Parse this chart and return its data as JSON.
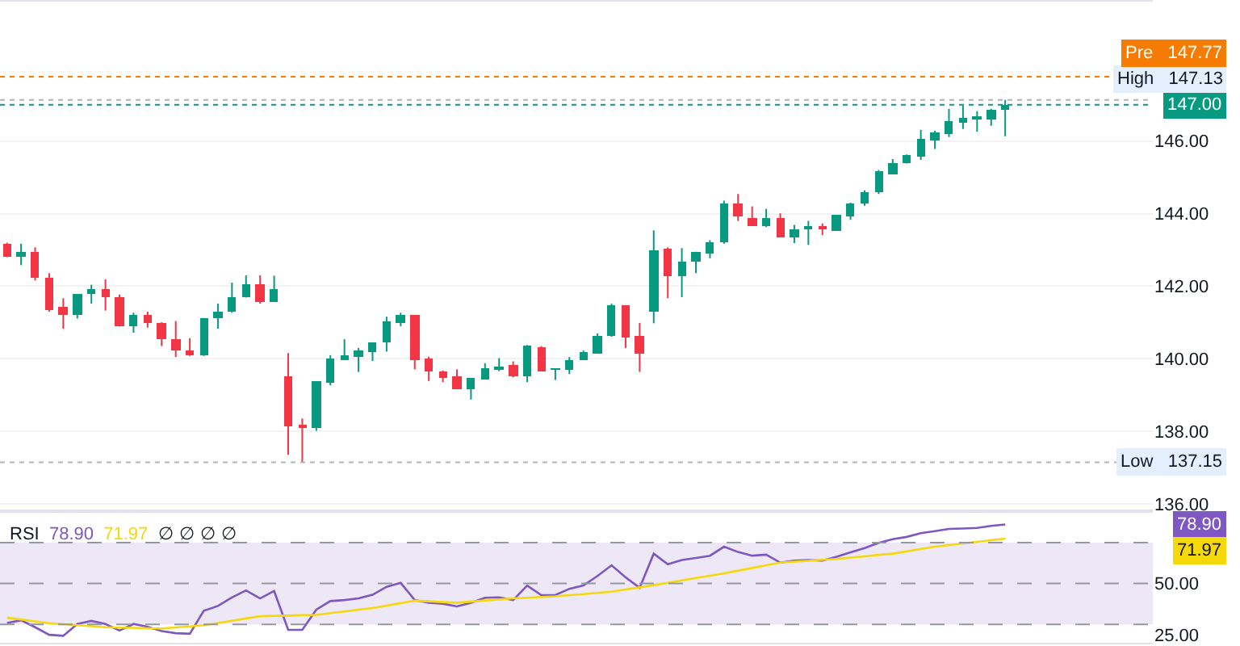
{
  "chart_data": [
    {
      "type": "candlestick",
      "tick_labels": "y",
      "grid": "y",
      "categories": [
        null,
        null,
        null,
        null,
        null,
        null,
        null,
        null,
        null,
        null,
        null,
        null,
        null,
        null,
        null,
        null,
        null,
        null,
        null,
        null,
        null,
        null,
        null,
        null,
        null,
        null,
        null,
        null,
        null,
        null,
        null,
        null,
        null,
        null,
        null,
        null,
        null,
        null,
        null,
        null,
        null,
        null,
        null,
        null,
        null,
        null,
        null,
        null,
        null,
        null,
        null,
        null,
        null,
        null,
        null,
        null,
        null,
        null,
        null,
        null,
        null,
        null,
        null,
        null,
        null,
        null,
        null,
        null,
        null,
        null,
        null,
        null,
        null,
        null,
        null,
        null,
        null,
        null,
        null,
        null,
        null,
        null
      ],
      "ohlc": [
        [
          143.17,
          143.2,
          142.8,
          142.82
        ],
        [
          142.83,
          143.17,
          142.58,
          142.95
        ],
        [
          142.95,
          143.07,
          142.16,
          142.22
        ],
        [
          142.25,
          142.36,
          141.3,
          141.36
        ],
        [
          141.42,
          141.67,
          140.83,
          141.23
        ],
        [
          141.23,
          141.79,
          141.11,
          141.79
        ],
        [
          141.78,
          142.04,
          141.52,
          141.92
        ],
        [
          141.92,
          142.19,
          141.33,
          141.7
        ],
        [
          141.72,
          141.77,
          140.89,
          140.89
        ],
        [
          140.92,
          141.27,
          140.72,
          141.2
        ],
        [
          141.2,
          141.3,
          140.86,
          141.0
        ],
        [
          141.01,
          141.01,
          140.35,
          140.54
        ],
        [
          140.55,
          141.04,
          140.05,
          140.21
        ],
        [
          140.24,
          140.57,
          140.08,
          140.08
        ],
        [
          140.08,
          141.13,
          140.08,
          141.13
        ],
        [
          141.1,
          141.52,
          140.83,
          141.3
        ],
        [
          141.29,
          142.1,
          141.27,
          141.72
        ],
        [
          141.69,
          142.3,
          141.69,
          142.05
        ],
        [
          142.04,
          142.3,
          141.52,
          141.55
        ],
        [
          141.57,
          142.29,
          141.57,
          141.92
        ],
        [
          139.54,
          140.16,
          137.36,
          138.14
        ],
        [
          138.17,
          138.36,
          137.15,
          138.13
        ],
        [
          138.11,
          139.38,
          138.02,
          139.38
        ],
        [
          139.35,
          140.1,
          139.27,
          140.0
        ],
        [
          139.98,
          140.54,
          139.98,
          140.08
        ],
        [
          140.07,
          140.3,
          139.64,
          140.23
        ],
        [
          140.2,
          140.45,
          139.94,
          140.45
        ],
        [
          140.45,
          141.16,
          140.2,
          141.02
        ],
        [
          141.0,
          141.27,
          140.9,
          141.2
        ],
        [
          141.2,
          141.2,
          139.71,
          139.95
        ],
        [
          140.0,
          140.06,
          139.39,
          139.66
        ],
        [
          139.64,
          139.68,
          139.36,
          139.49
        ],
        [
          139.51,
          139.71,
          139.18,
          139.18
        ],
        [
          139.18,
          139.46,
          138.88,
          139.46
        ],
        [
          139.44,
          139.88,
          139.44,
          139.73
        ],
        [
          139.71,
          140.02,
          139.66,
          139.8
        ],
        [
          139.83,
          139.93,
          139.49,
          139.54
        ],
        [
          139.54,
          140.38,
          139.36,
          140.35
        ],
        [
          140.32,
          140.35,
          139.66,
          139.66
        ],
        [
          139.7,
          139.74,
          139.42,
          139.73
        ],
        [
          139.68,
          140.05,
          139.58,
          139.96
        ],
        [
          139.98,
          140.23,
          139.98,
          140.19
        ],
        [
          140.16,
          140.7,
          140.16,
          140.63
        ],
        [
          140.61,
          141.52,
          140.61,
          141.48
        ],
        [
          141.48,
          141.48,
          140.3,
          140.6
        ],
        [
          140.61,
          140.99,
          139.64,
          140.13
        ],
        [
          141.3,
          143.54,
          140.98,
          142.99
        ],
        [
          143.04,
          143.07,
          141.67,
          142.29
        ],
        [
          142.29,
          143.05,
          141.7,
          142.67
        ],
        [
          142.67,
          142.95,
          142.36,
          142.95
        ],
        [
          142.92,
          143.27,
          142.77,
          143.19
        ],
        [
          143.19,
          144.36,
          143.17,
          144.27
        ],
        [
          144.27,
          144.54,
          143.8,
          143.91
        ],
        [
          143.88,
          144.2,
          143.66,
          143.66
        ],
        [
          143.66,
          144.13,
          143.63,
          143.86
        ],
        [
          143.86,
          144.01,
          143.36,
          143.36
        ],
        [
          143.36,
          143.69,
          143.19,
          143.57
        ],
        [
          143.6,
          143.8,
          143.14,
          143.63
        ],
        [
          143.63,
          143.73,
          143.41,
          143.6
        ],
        [
          143.54,
          143.95,
          143.54,
          143.95
        ],
        [
          143.92,
          144.3,
          143.83,
          144.27
        ],
        [
          144.27,
          144.64,
          144.22,
          144.6
        ],
        [
          144.57,
          145.2,
          144.54,
          145.16
        ],
        [
          145.1,
          145.5,
          145.1,
          145.39
        ],
        [
          145.38,
          145.63,
          145.38,
          145.6
        ],
        [
          145.57,
          146.31,
          145.48,
          146.04
        ],
        [
          146.01,
          146.28,
          145.78,
          146.23
        ],
        [
          146.2,
          146.89,
          146.11,
          146.56
        ],
        [
          146.51,
          146.98,
          146.33,
          146.63
        ],
        [
          146.6,
          146.82,
          146.26,
          146.66
        ],
        [
          146.6,
          146.89,
          146.42,
          146.85
        ],
        [
          146.84,
          147.13,
          146.13,
          147.0
        ],
        null,
        null,
        null,
        null,
        null,
        null,
        null,
        null,
        null,
        null
      ],
      "colors": [
        "#f23645",
        "#089981",
        "#f23645",
        "#f23645",
        "#f23645",
        "#089981",
        "#089981",
        "#f23645",
        "#f23645",
        "#089981",
        "#f23645",
        "#f23645",
        "#f23645",
        "#f23645",
        "#089981",
        "#089981",
        "#089981",
        "#089981",
        "#f23645",
        "#089981",
        "#f23645",
        "#f23645",
        "#089981",
        "#089981",
        "#089981",
        "#089981",
        "#089981",
        "#089981",
        "#089981",
        "#f23645",
        "#f23645",
        "#f23645",
        "#f23645",
        "#089981",
        "#089981",
        "#089981",
        "#f23645",
        "#089981",
        "#f23645",
        "#089981",
        "#089981",
        "#089981",
        "#089981",
        "#089981",
        "#f23645",
        "#f23645",
        "#089981",
        "#f23645",
        "#089981",
        "#089981",
        "#089981",
        "#089981",
        "#f23645",
        "#f23645",
        "#089981",
        "#f23645",
        "#089981",
        "#089981",
        "#f23645",
        "#089981",
        "#089981",
        "#089981",
        "#089981",
        "#089981",
        "#089981",
        "#089981",
        "#089981",
        "#089981",
        "#089981",
        "#089981",
        "#089981",
        "#089981",
        null,
        null,
        null,
        null,
        null,
        null,
        null,
        null,
        null,
        null
      ],
      "ylim": [
        135.8,
        149.84
      ],
      "yticks": [
        {
          "value": 136,
          "label": "136.00"
        },
        {
          "value": 138,
          "label": "138.00"
        },
        {
          "value": 140,
          "label": "140.00"
        },
        {
          "value": 142,
          "label": "142.00"
        },
        {
          "value": 144,
          "label": "144.00"
        },
        {
          "value": 146,
          "label": "146.00"
        }
      ],
      "ref_lines": [
        {
          "axis": "y",
          "value": 147.77,
          "label": "Pre 147.77",
          "color": "#f57c00",
          "line_style": "dotted"
        },
        {
          "axis": "y",
          "value": 147.13,
          "label": "High 147.13",
          "color": "#b2b5be",
          "line_style": "dotted"
        },
        {
          "axis": "y",
          "value": 147.0,
          "label": "147.00",
          "color": "#089981",
          "line_style": "dotted"
        },
        {
          "axis": "y",
          "value": 137.15,
          "label": "Low 137.15",
          "color": "#b2b5be",
          "line_style": "dotted"
        }
      ]
    },
    {
      "type": "line",
      "title": "RSI",
      "tick_labels": "y",
      "categories": [
        null,
        null,
        null,
        null,
        null,
        null,
        null,
        null,
        null,
        null,
        null,
        null,
        null,
        null,
        null,
        null,
        null,
        null,
        null,
        null,
        null,
        null,
        null,
        null,
        null,
        null,
        null,
        null,
        null,
        null,
        null,
        null,
        null,
        null,
        null,
        null,
        null,
        null,
        null,
        null,
        null,
        null,
        null,
        null,
        null,
        null,
        null,
        null,
        null,
        null,
        null,
        null,
        null,
        null,
        null,
        null,
        null,
        null,
        null,
        null,
        null,
        null,
        null,
        null,
        null,
        null,
        null,
        null,
        null,
        null,
        null,
        null,
        null,
        null,
        null,
        null,
        null,
        null,
        null,
        null,
        null,
        null
      ],
      "series": [
        {
          "color": "#7e57c2",
          "values": [
            30.7,
            32.0,
            28.6,
            24.9,
            24.4,
            30.2,
            31.7,
            30.2,
            27.0,
            30.2,
            28.8,
            26.7,
            25.7,
            25.4,
            36.7,
            39.0,
            43.2,
            46.6,
            42.7,
            46.3,
            27.3,
            27.3,
            37.2,
            41.4,
            41.9,
            42.7,
            44.5,
            48.4,
            50.3,
            41.9,
            40.6,
            40.1,
            38.8,
            40.6,
            43.0,
            43.2,
            41.9,
            49.0,
            44.3,
            44.3,
            47.4,
            49.0,
            53.7,
            58.9,
            53.0,
            47.9,
            64.6,
            59.4,
            61.5,
            62.5,
            63.6,
            68.0,
            65.4,
            63.6,
            64.1,
            60.2,
            61.2,
            61.5,
            61.2,
            63.1,
            65.2,
            67.3,
            69.9,
            71.7,
            72.8,
            74.6,
            75.6,
            76.7,
            76.9,
            77.2,
            78.2,
            78.9,
            null,
            null,
            null,
            null,
            null,
            null,
            null,
            null,
            null,
            null
          ]
        },
        {
          "color": "#f5d90a",
          "values": [
            33.3,
            32.4,
            31.5,
            30.6,
            30.1,
            29.6,
            29.1,
            28.6,
            28.4,
            28.3,
            28.1,
            28.0,
            28.5,
            29.0,
            29.6,
            30.7,
            31.8,
            32.9,
            34.0,
            34.2,
            34.3,
            34.5,
            34.6,
            35.5,
            36.3,
            37.2,
            38.0,
            39.2,
            40.4,
            41.6,
            41.3,
            40.9,
            40.6,
            41.1,
            41.7,
            42.2,
            42.7,
            43.0,
            43.4,
            43.7,
            44.3,
            44.8,
            45.4,
            46.0,
            47.1,
            48.1,
            49.2,
            50.3,
            51.5,
            52.7,
            53.8,
            55.0,
            56.3,
            57.6,
            58.9,
            60.2,
            60.7,
            61.1,
            61.6,
            62.0,
            62.7,
            63.3,
            64.0,
            64.6,
            65.7,
            66.9,
            68.0,
            68.8,
            69.6,
            70.4,
            71.2,
            71.97,
            null,
            null,
            null,
            null,
            null,
            null,
            null,
            null,
            null,
            null
          ]
        }
      ],
      "ylim": [
        21,
        85.3
      ],
      "yticks": [
        {
          "value": 25,
          "label": "25.00"
        },
        {
          "value": 50,
          "label": "50.00"
        }
      ],
      "bands": [
        {
          "axis": "y",
          "from": 30,
          "to": 70,
          "color": "#ede7f6"
        }
      ],
      "ref_lines": [
        {
          "axis": "y",
          "value": 70,
          "color": "#9598a1",
          "line_style": "dashed"
        },
        {
          "axis": "y",
          "value": 50,
          "color": "#9598a1",
          "line_style": "dashed"
        },
        {
          "axis": "y",
          "value": 30,
          "color": "#9598a1",
          "line_style": "dashed"
        }
      ],
      "annotations": [
        "78.90",
        "71.97",
        "∅ ∅ ∅ ∅"
      ]
    }
  ]
}
